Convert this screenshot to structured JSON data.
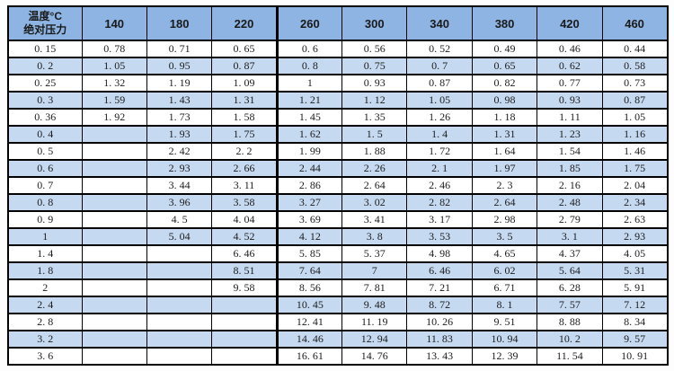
{
  "colors": {
    "header_bg": "#8db4e2",
    "stripe_bg": "#c5d9f1",
    "row_bg": "#ffffff",
    "border": "#000000",
    "text": "#1c1c1c"
  },
  "chart_data": {
    "type": "table",
    "corner_header": {
      "line1": "温度°C",
      "line2": "绝对压力"
    },
    "columns_label": "温度°C",
    "rows_label": "绝对压力",
    "temperature_columns": [
      "140",
      "180",
      "220",
      "260",
      "300",
      "340",
      "380",
      "420",
      "460"
    ],
    "thick_divider_before_column": "260",
    "rows": [
      {
        "pressure": "0.15",
        "values": [
          "0.78",
          "0.71",
          "0.65",
          "0.6",
          "0.56",
          "0.52",
          "0.49",
          "0.46",
          "0.44"
        ]
      },
      {
        "pressure": "0.2",
        "values": [
          "1.05",
          "0.95",
          "0.87",
          "0.8",
          "0.75",
          "0.7",
          "0.65",
          "0.62",
          "0.58"
        ]
      },
      {
        "pressure": "0.25",
        "values": [
          "1.32",
          "1.19",
          "1.09",
          "1",
          "0.93",
          "0.87",
          "0.82",
          "0.77",
          "0.73"
        ]
      },
      {
        "pressure": "0.3",
        "values": [
          "1.59",
          "1.43",
          "1.31",
          "1.21",
          "1.12",
          "1.05",
          "0.98",
          "0.93",
          "0.87"
        ]
      },
      {
        "pressure": "0.36",
        "values": [
          "1.92",
          "1.73",
          "1.58",
          "1.45",
          "1.35",
          "1.26",
          "1.18",
          "1.11",
          "1.05"
        ]
      },
      {
        "pressure": "0.4",
        "values": [
          "",
          "1.93",
          "1.75",
          "1.62",
          "1.5",
          "1.4",
          "1.31",
          "1.23",
          "1.16"
        ]
      },
      {
        "pressure": "0.5",
        "values": [
          "",
          "2.42",
          "2.2",
          "1.99",
          "1.88",
          "1.72",
          "1.64",
          "1.54",
          "1.46"
        ]
      },
      {
        "pressure": "0.6",
        "values": [
          "",
          "2.93",
          "2.66",
          "2.44",
          "2.26",
          "2.1",
          "1.97",
          "1.85",
          "1.75"
        ]
      },
      {
        "pressure": "0.7",
        "values": [
          "",
          "3.44",
          "3.11",
          "2.86",
          "2.64",
          "2.46",
          "2.3",
          "2.16",
          "2.04"
        ]
      },
      {
        "pressure": "0.8",
        "values": [
          "",
          "3.96",
          "3.58",
          "3.27",
          "3.02",
          "2.82",
          "2.64",
          "2.48",
          "2.34"
        ]
      },
      {
        "pressure": "0.9",
        "values": [
          "",
          "4.5",
          "4.04",
          "3.69",
          "3.41",
          "3.17",
          "2.98",
          "2.79",
          "2.63"
        ]
      },
      {
        "pressure": "1",
        "values": [
          "",
          "5.04",
          "4.52",
          "4.12",
          "3.8",
          "3.53",
          "3.5",
          "3.1",
          "2.93"
        ]
      },
      {
        "pressure": "1.4",
        "values": [
          "",
          "",
          "6.46",
          "5.85",
          "5.37",
          "4.98",
          "4.65",
          "4.37",
          "4.05"
        ]
      },
      {
        "pressure": "1.8",
        "values": [
          "",
          "",
          "8.51",
          "7.64",
          "7",
          "6.46",
          "6.02",
          "5.64",
          "5.31"
        ]
      },
      {
        "pressure": "2",
        "values": [
          "",
          "",
          "9.58",
          "8.56",
          "7.81",
          "7.21",
          "6.71",
          "6.28",
          "5.91"
        ]
      },
      {
        "pressure": "2.4",
        "values": [
          "",
          "",
          "",
          "10.45",
          "9.48",
          "8.72",
          "8.1",
          "7.57",
          "7.12"
        ]
      },
      {
        "pressure": "2.8",
        "values": [
          "",
          "",
          "",
          "12.41",
          "11.19",
          "10.26",
          "9.51",
          "8.88",
          "8.34"
        ]
      },
      {
        "pressure": "3.2",
        "values": [
          "",
          "",
          "",
          "14.46",
          "12.94",
          "11.83",
          "10.94",
          "10.2",
          "9.57"
        ]
      },
      {
        "pressure": "3.6",
        "values": [
          "",
          "",
          "",
          "16.61",
          "14.76",
          "13.43",
          "12.39",
          "11.54",
          "10.91"
        ]
      }
    ]
  }
}
